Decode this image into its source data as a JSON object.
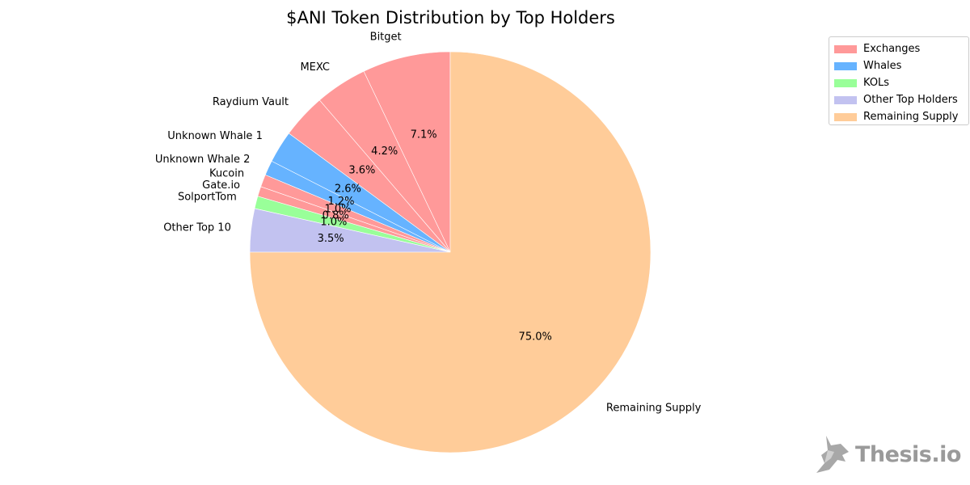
{
  "chart_data": {
    "type": "pie",
    "title": "$ANI Token Distribution by Top Holders",
    "start_angle_deg": 90,
    "direction": "counterclockwise",
    "slices": [
      {
        "label": "Bitget",
        "value": 7.1,
        "pct_label": "7.1%",
        "group": "Exchanges"
      },
      {
        "label": "MEXC",
        "value": 4.2,
        "pct_label": "4.2%",
        "group": "Exchanges"
      },
      {
        "label": "Raydium Vault",
        "value": 3.6,
        "pct_label": "3.6%",
        "group": "Exchanges"
      },
      {
        "label": "Unknown Whale 1",
        "value": 2.6,
        "pct_label": "2.6%",
        "group": "Whales"
      },
      {
        "label": "Unknown Whale 2",
        "value": 1.2,
        "pct_label": "1.2%",
        "group": "Whales"
      },
      {
        "label": "Kucoin",
        "value": 1.0,
        "pct_label": "1.0%",
        "group": "Exchanges"
      },
      {
        "label": "Gate.io",
        "value": 0.8,
        "pct_label": "0.8%",
        "group": "Exchanges"
      },
      {
        "label": "SolportTom",
        "value": 1.0,
        "pct_label": "1.0%",
        "group": "KOLs"
      },
      {
        "label": "Other Top 10",
        "value": 3.5,
        "pct_label": "3.5%",
        "group": "Other Top Holders"
      },
      {
        "label": "Remaining Supply",
        "value": 75.0,
        "pct_label": "75.0%",
        "group": "Remaining Supply"
      }
    ],
    "legend": {
      "placement": "top-right",
      "entries": [
        {
          "name": "Exchanges",
          "color": "#ff9999"
        },
        {
          "name": "Whales",
          "color": "#66b3ff"
        },
        {
          "name": "KOLs",
          "color": "#99ff99"
        },
        {
          "name": "Other Top Holders",
          "color": "#c2c2f0"
        },
        {
          "name": "Remaining Supply",
          "color": "#ffcc99"
        }
      ]
    }
  },
  "watermark": {
    "text": "Thesis.io",
    "icon": "wolf-head-logo-icon",
    "color": "#9a9a9a"
  }
}
